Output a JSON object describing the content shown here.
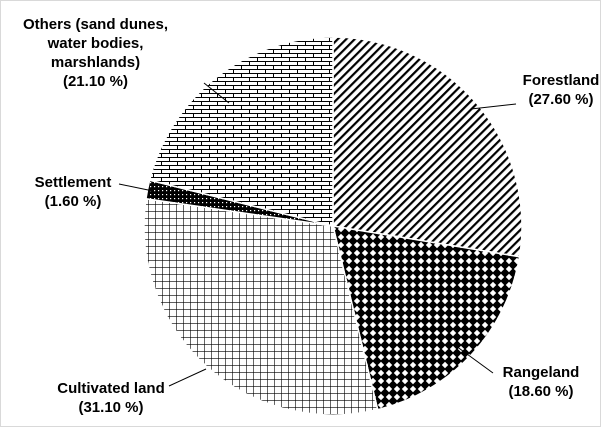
{
  "chart_data": {
    "type": "pie",
    "categories": [
      "Forestland",
      "Rangeland",
      "Cultivated land",
      "Settlement",
      "Others (sand dunes, water bodies, marshlands)"
    ],
    "values": [
      27.6,
      18.6,
      31.1,
      1.6,
      21.1
    ],
    "value_labels": [
      "(27.60 %)",
      "(18.60 %)",
      "(31.10 %)",
      "(1.60 %)",
      "(21.10 %)"
    ]
  }
}
